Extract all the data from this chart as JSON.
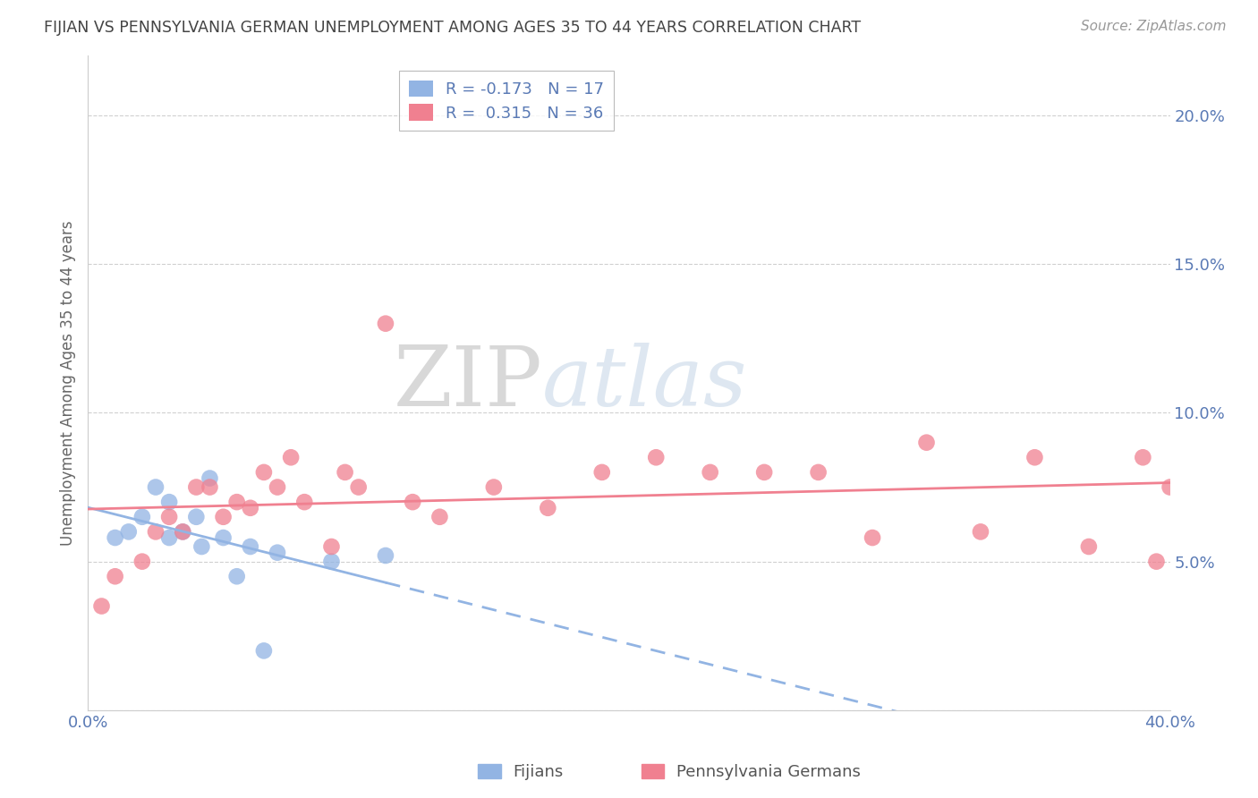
{
  "title": "FIJIAN VS PENNSYLVANIA GERMAN UNEMPLOYMENT AMONG AGES 35 TO 44 YEARS CORRELATION CHART",
  "source": "Source: ZipAtlas.com",
  "ylabel": "Unemployment Among Ages 35 to 44 years",
  "xlim": [
    0.0,
    0.4
  ],
  "ylim": [
    0.0,
    0.22
  ],
  "fijian_color": "#92b4e3",
  "penn_german_color": "#f08090",
  "fijian_label": "Fijians",
  "penn_german_label": "Pennsylvania Germans",
  "R_fijian": -0.173,
  "N_fijian": 17,
  "R_penn": 0.315,
  "N_penn": 36,
  "fijian_x": [
    0.01,
    0.015,
    0.02,
    0.025,
    0.03,
    0.03,
    0.035,
    0.04,
    0.042,
    0.045,
    0.05,
    0.055,
    0.06,
    0.065,
    0.07,
    0.09,
    0.11
  ],
  "fijian_y": [
    0.058,
    0.06,
    0.065,
    0.075,
    0.058,
    0.07,
    0.06,
    0.065,
    0.055,
    0.078,
    0.058,
    0.045,
    0.055,
    0.02,
    0.053,
    0.05,
    0.052
  ],
  "penn_x": [
    0.005,
    0.01,
    0.02,
    0.025,
    0.03,
    0.035,
    0.04,
    0.045,
    0.05,
    0.055,
    0.06,
    0.065,
    0.07,
    0.075,
    0.08,
    0.09,
    0.095,
    0.1,
    0.11,
    0.12,
    0.13,
    0.15,
    0.17,
    0.19,
    0.21,
    0.23,
    0.25,
    0.27,
    0.29,
    0.31,
    0.33,
    0.35,
    0.37,
    0.39,
    0.395,
    0.4
  ],
  "penn_y": [
    0.035,
    0.045,
    0.05,
    0.06,
    0.065,
    0.06,
    0.075,
    0.075,
    0.065,
    0.07,
    0.068,
    0.08,
    0.075,
    0.085,
    0.07,
    0.055,
    0.08,
    0.075,
    0.13,
    0.07,
    0.065,
    0.075,
    0.068,
    0.08,
    0.085,
    0.08,
    0.08,
    0.08,
    0.058,
    0.09,
    0.06,
    0.085,
    0.055,
    0.085,
    0.05,
    0.075
  ],
  "background_color": "#ffffff",
  "watermark_zip": "ZIP",
  "watermark_atlas": "atlas",
  "title_color": "#444444",
  "axis_color": "#5a7ab5",
  "grid_color": "#d0d0d0",
  "legend_text_color": "#5a7ab5"
}
